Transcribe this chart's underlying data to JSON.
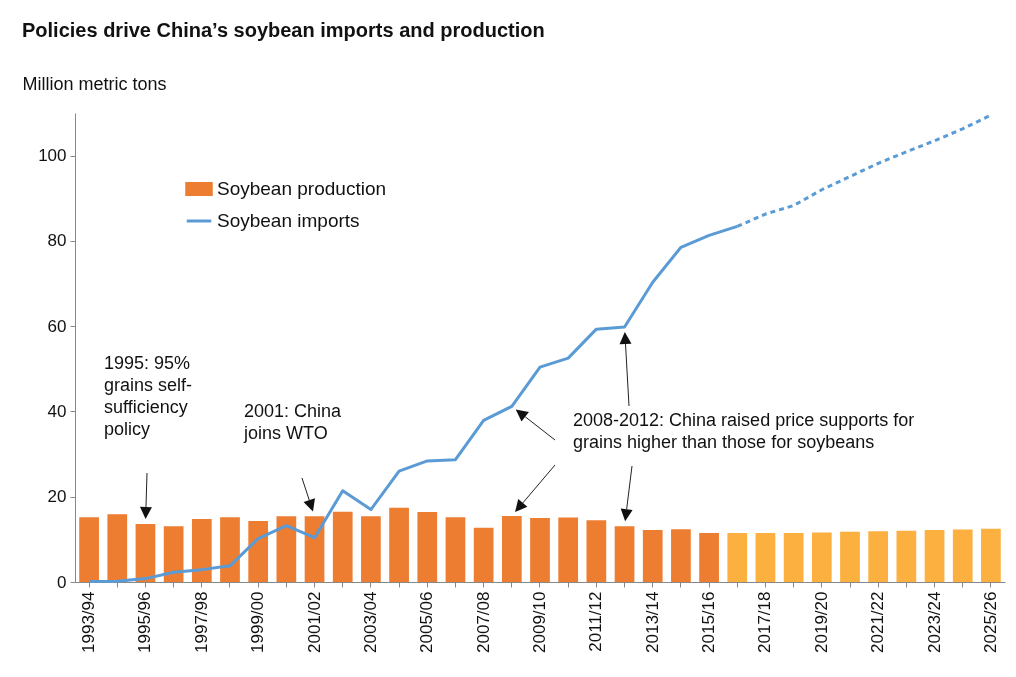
{
  "chart_data": {
    "type": "bar",
    "title": "Policies drive China’s soybean imports and production",
    "ylabel": "Million metric tons",
    "categories": [
      "1993/94",
      null,
      "1995/96",
      null,
      "1997/98",
      null,
      "1999/00",
      null,
      "2001/02",
      null,
      "2003/04",
      null,
      "2005/06",
      null,
      "2007/08",
      null,
      "2009/10",
      null,
      "2011/12",
      null,
      "2013/14",
      null,
      "2015/16",
      null,
      "2017/18",
      null,
      "2019/20",
      null,
      "2021/22",
      null,
      "2023/24",
      null,
      "2025/26"
    ],
    "series": [
      {
        "name": "Soybean production",
        "type": "bar",
        "color": "#ed7d31",
        "colors": [
          "#ed7d31",
          "#ed7d31",
          "#ed7d31",
          "#ed7d31",
          "#ed7d31",
          "#ed7d31",
          "#ed7d31",
          "#ed7d31",
          "#ed7d31",
          "#ed7d31",
          "#ed7d31",
          "#ed7d31",
          "#ed7d31",
          "#ed7d31",
          "#ed7d31",
          "#ed7d31",
          "#ed7d31",
          "#ed7d31",
          "#ed7d31",
          "#ed7d31",
          "#ed7d31",
          "#ed7d31",
          "#ed7d31",
          "#fbb040",
          "#fbb040",
          "#fbb040",
          "#fbb040",
          "#fbb040",
          "#fbb040",
          "#fbb040",
          "#fbb040",
          "#fbb040",
          "#fbb040"
        ],
        "values": [
          15.2,
          15.9,
          13.6,
          13.1,
          14.8,
          15.2,
          14.3,
          15.4,
          15.4,
          16.5,
          15.4,
          17.4,
          16.4,
          15.2,
          12.7,
          15.5,
          15.0,
          15.1,
          14.5,
          13.1,
          12.2,
          12.4,
          11.5,
          11.5,
          11.5,
          11.5,
          11.6,
          11.8,
          11.9,
          12.0,
          12.2,
          12.3,
          12.5
        ]
      },
      {
        "name": "Soybean imports",
        "type": "line",
        "color": "#5b9bd5",
        "line_style": "solid",
        "values": [
          0.1,
          0.2,
          0.8,
          2.3,
          2.9,
          3.8,
          10.2,
          13.2,
          10.4,
          21.4,
          17.0,
          26.0,
          28.4,
          28.7,
          37.9,
          41.2,
          50.4,
          52.5,
          59.3,
          59.8,
          70.3,
          78.5,
          81.3,
          83.4,
          null,
          null,
          null,
          null,
          null,
          null,
          null,
          null,
          null
        ]
      },
      {
        "type": "line",
        "color": "#5b9bd5",
        "line_style": "dashed",
        "values": [
          null,
          null,
          null,
          null,
          null,
          null,
          null,
          null,
          null,
          null,
          null,
          null,
          null,
          null,
          null,
          null,
          null,
          null,
          null,
          null,
          null,
          null,
          null,
          83.4,
          86.3,
          88.3,
          92.0,
          95.1,
          98.2,
          100.9,
          103.5,
          106.3,
          109.5
        ]
      }
    ],
    "ylim": [
      0,
      110
    ],
    "yticks": [
      0,
      20,
      40,
      60,
      80,
      100
    ],
    "legend": "top left",
    "annotations": [
      "1995: 95% grains self-sufficiency policy",
      "2001: China joins WTO",
      "2008-2012: China raised price supports for grains higher than those for soybeans"
    ]
  }
}
